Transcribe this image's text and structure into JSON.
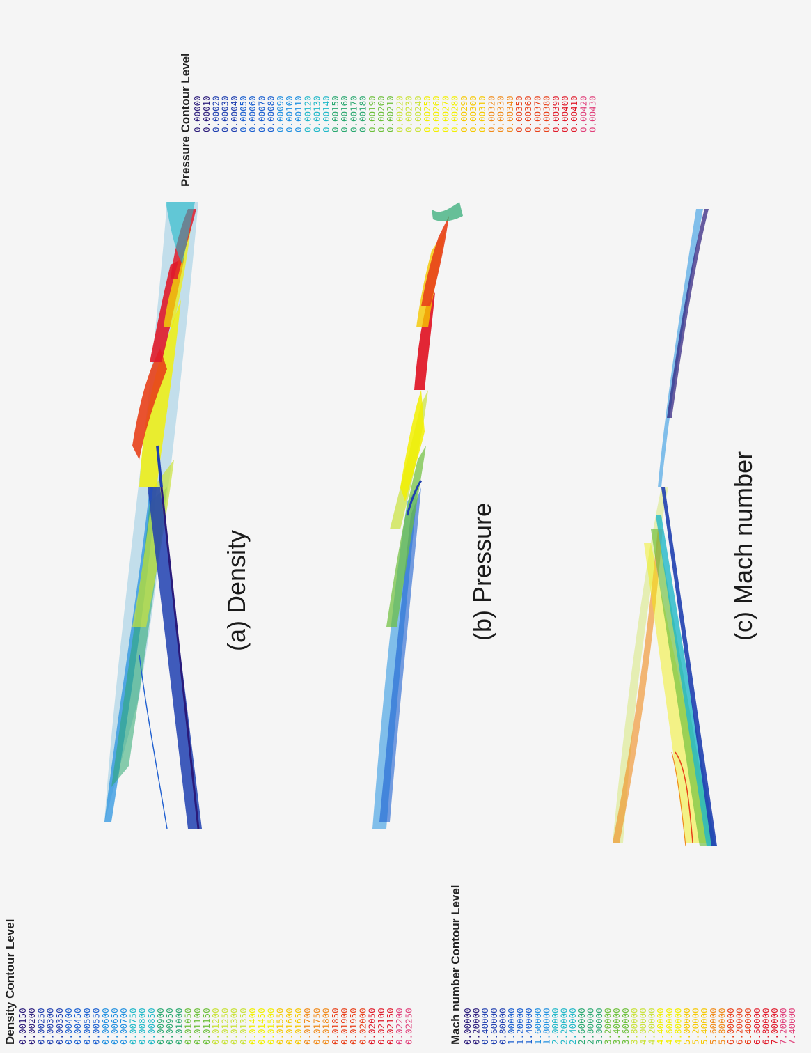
{
  "panels": {
    "density": {
      "caption": "(a) Density"
    },
    "pressure": {
      "caption": "(b) Pressure"
    },
    "mach": {
      "caption": "(c) Mach number"
    }
  },
  "legends": {
    "density": {
      "title": "Density Contour Level",
      "values": [
        "0.00150",
        "0.00200",
        "0.00250",
        "0.00300",
        "0.00350",
        "0.00400",
        "0.00450",
        "0.00500",
        "0.00550",
        "0.00600",
        "0.00650",
        "0.00700",
        "0.00750",
        "0.00800",
        "0.00850",
        "0.00900",
        "0.00950",
        "0.01000",
        "0.01050",
        "0.01100",
        "0.01150",
        "0.01200",
        "0.01250",
        "0.01300",
        "0.01350",
        "0.01400",
        "0.01450",
        "0.01500",
        "0.01550",
        "0.01600",
        "0.01650",
        "0.01700",
        "0.01750",
        "0.01800",
        "0.01850",
        "0.01900",
        "0.01950",
        "0.02000",
        "0.02050",
        "0.02100",
        "0.02150",
        "0.02200",
        "0.02250"
      ]
    },
    "pressure": {
      "title": "Pressure Contour Level",
      "values": [
        "0.00000",
        "0.00010",
        "0.00020",
        "0.00030",
        "0.00040",
        "0.00050",
        "0.00060",
        "0.00070",
        "0.00080",
        "0.00090",
        "0.00100",
        "0.00110",
        "0.00120",
        "0.00130",
        "0.00140",
        "0.00150",
        "0.00160",
        "0.00170",
        "0.00180",
        "0.00190",
        "0.00200",
        "0.00210",
        "0.00220",
        "0.00230",
        "0.00240",
        "0.00250",
        "0.00260",
        "0.00270",
        "0.00280",
        "0.00290",
        "0.00300",
        "0.00310",
        "0.00320",
        "0.00330",
        "0.00340",
        "0.00350",
        "0.00360",
        "0.00370",
        "0.00380",
        "0.00390",
        "0.00400",
        "0.00410",
        "0.00420",
        "0.00430"
      ]
    },
    "mach": {
      "title": "Mach  number Contour Level",
      "values": [
        "0.00000",
        "0.20000",
        "0.40000",
        "0.60000",
        "0.80000",
        "1.00000",
        "1.20000",
        "1.40000",
        "1.60000",
        "1.80000",
        "2.00000",
        "2.20000",
        "2.40000",
        "2.60000",
        "2.80000",
        "3.00000",
        "3.20000",
        "3.40000",
        "3.60000",
        "3.80000",
        "4.00000",
        "4.20000",
        "4.40000",
        "4.60000",
        "4.80000",
        "5.00000",
        "5.20000",
        "5.40000",
        "5.60000",
        "5.80000",
        "6.00000",
        "6.20000",
        "6.40000",
        "6.60000",
        "6.80000",
        "7.00000",
        "7.20000",
        "7.40000"
      ]
    }
  },
  "colors": {
    "background": "#f5f5f5",
    "caption": "#1a1a1a",
    "scale": [
      "#2a1a7a",
      "#1f3fb0",
      "#1a5fd0",
      "#1f8fe0",
      "#20b8c8",
      "#2aa870",
      "#6cbf3a",
      "#c9e23a",
      "#f2f000",
      "#f5c800",
      "#f08a1a",
      "#e8401a",
      "#e01a2a",
      "#e0407a"
    ]
  }
}
